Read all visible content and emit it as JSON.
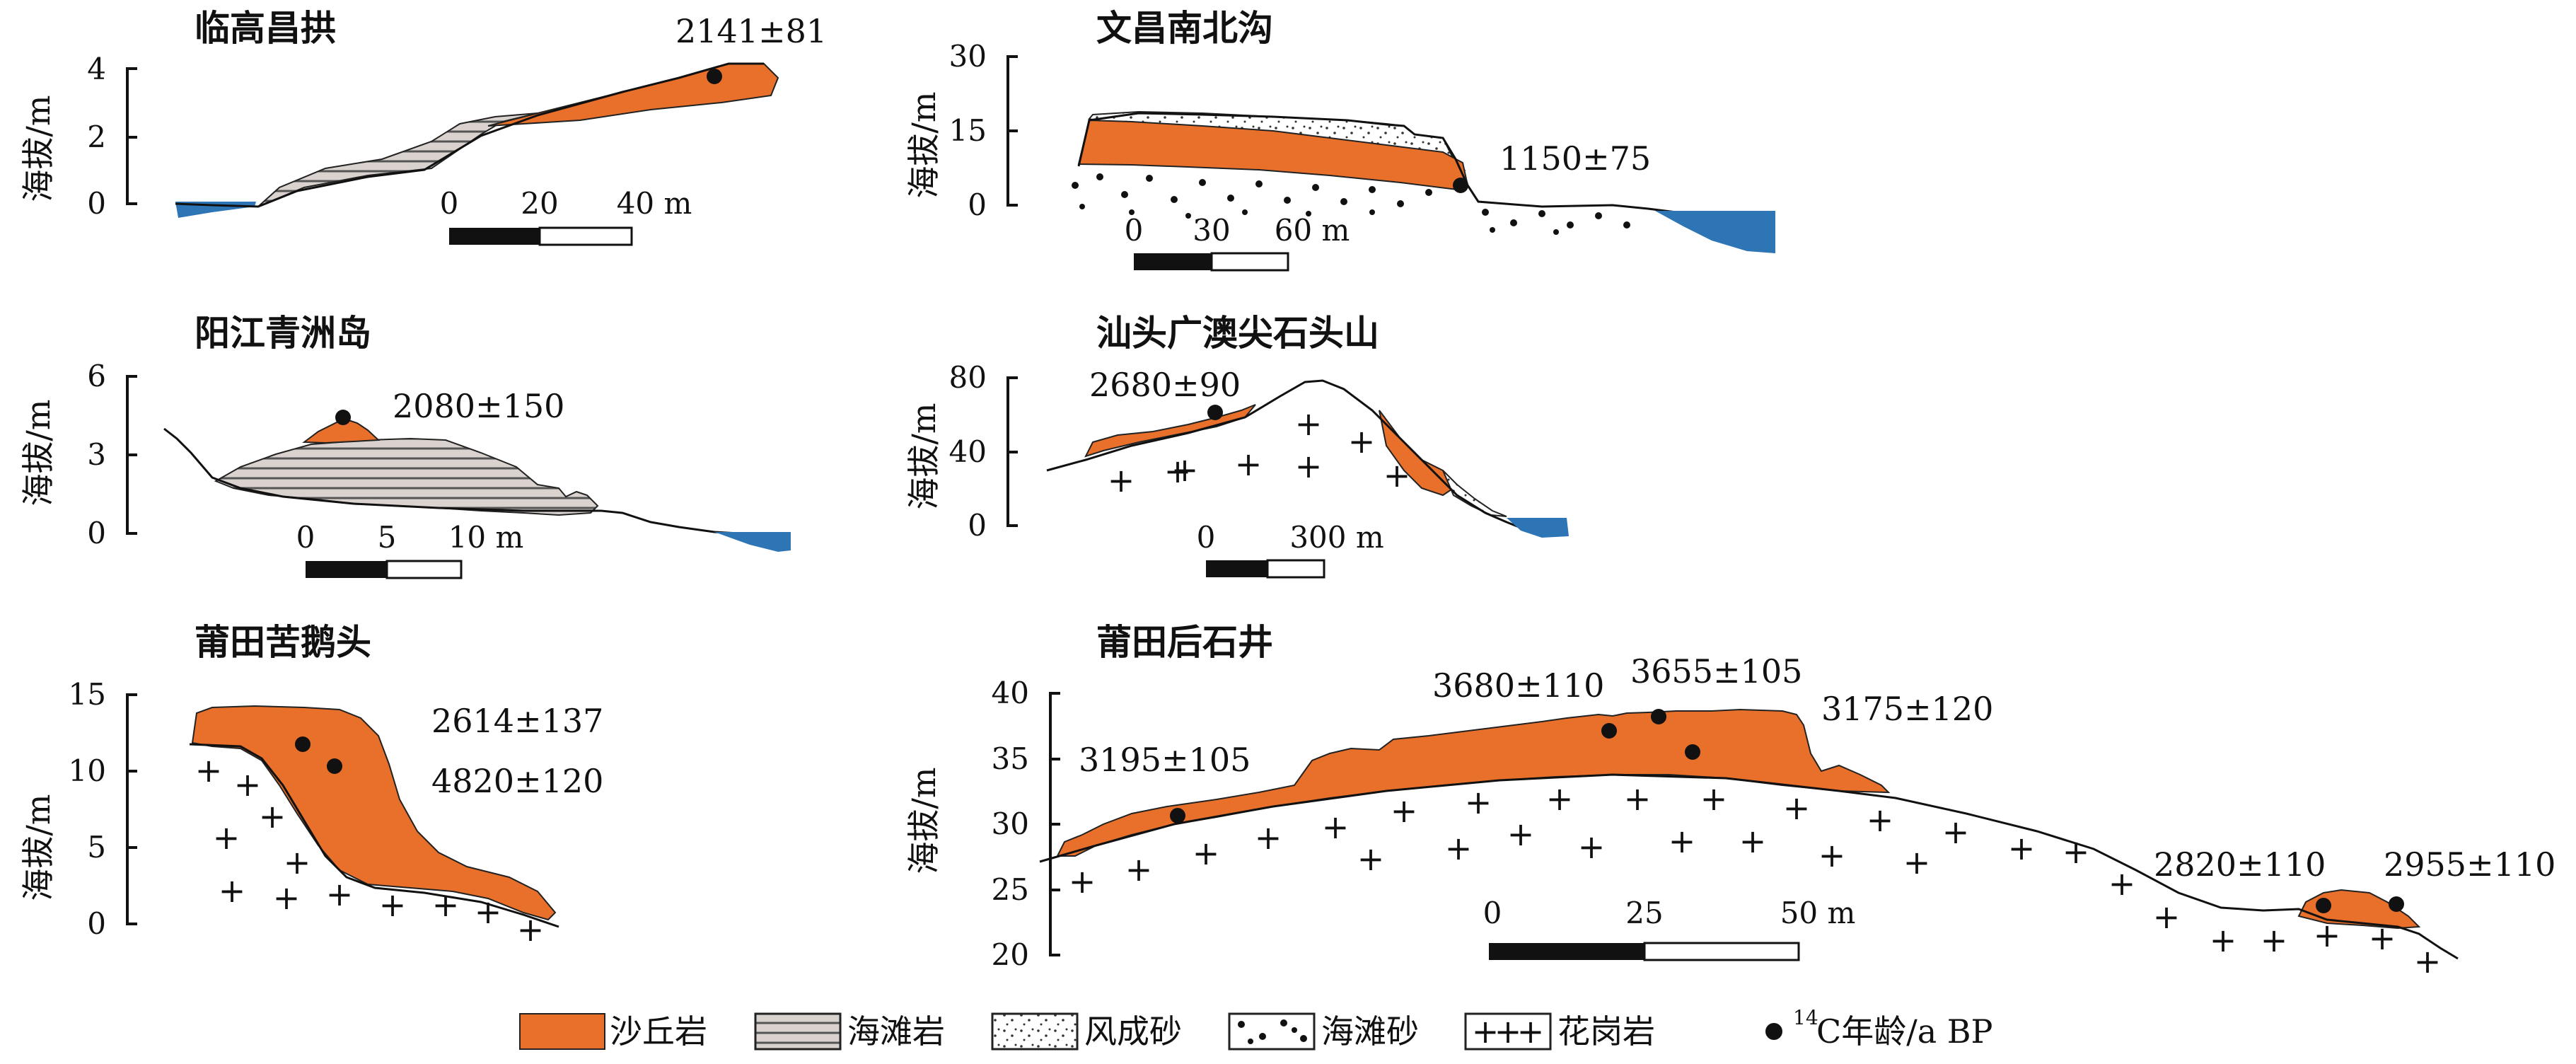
{
  "panels": {
    "p1": {
      "title": "临高昌拱",
      "y_label": "海拔/m",
      "yticks": [
        "4",
        "2",
        "0"
      ],
      "scale": [
        "0",
        "20",
        "40 m"
      ],
      "dates": [
        "2141±81"
      ]
    },
    "p2": {
      "title": "文昌南北沟",
      "y_label": "海拔/m",
      "yticks": [
        "30",
        "15",
        "0"
      ],
      "scale": [
        "0",
        "30",
        "60 m"
      ],
      "dates": [
        "1150±75"
      ]
    },
    "p3": {
      "title": "阳江青洲岛",
      "y_label": "海拔/m",
      "yticks": [
        "6",
        "3",
        "0"
      ],
      "scale": [
        "0",
        "5",
        "10 m"
      ],
      "dates": [
        "2080±150"
      ]
    },
    "p4": {
      "title": "汕头广澳尖石头山",
      "y_label": "海拔/m",
      "yticks": [
        "80",
        "40",
        "0"
      ],
      "scale": [
        "0",
        "300 m"
      ],
      "dates": [
        "2680±90"
      ]
    },
    "p5": {
      "title": "莆田苦鹅头",
      "y_label": "海拔/m",
      "yticks": [
        "15",
        "10",
        "5",
        "0"
      ],
      "dates": [
        "2614±137",
        "4820±120"
      ]
    },
    "p6": {
      "title": "莆田后石井",
      "y_label": "海拔/m",
      "yticks": [
        "40",
        "35",
        "30",
        "25",
        "20"
      ],
      "scale": [
        "0",
        "25",
        "50 m"
      ],
      "dates": [
        "3195±105",
        "3680±110",
        "3655±105",
        "3175±120",
        "2820±110",
        "2955±110"
      ]
    }
  },
  "legend": {
    "dune_rock": "沙丘岩",
    "beach_rock": "海滩岩",
    "aeolian_sand": "风成砂",
    "beach_sand": "海滩砂",
    "granite": "花岗岩",
    "c14_age": "C年龄/a BP",
    "c14_sup": "14"
  },
  "colors": {
    "dune_rock": "#e8702a",
    "water": "#2e75b6",
    "beach_rock_hatch": "#555555"
  }
}
